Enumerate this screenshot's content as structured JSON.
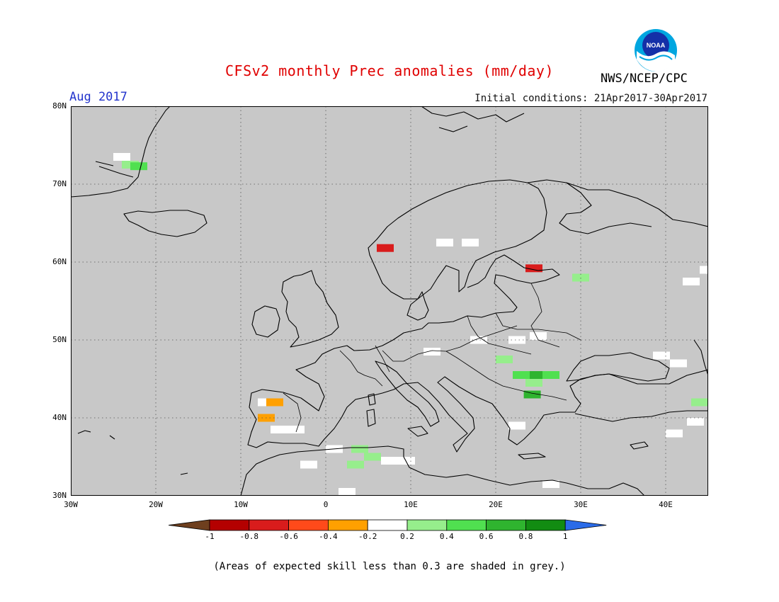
{
  "title": "CFSv2 monthly Prec anomalies (mm/day)",
  "month": "Aug 2017",
  "initial_conditions": "Initial conditions: 21Apr2017-30Apr2017",
  "agency": "NWS/NCEP/CPC",
  "logo_text": "NOAA",
  "footer": "(Areas of expected skill less than 0.3 are shaded in grey.)",
  "map": {
    "lon_range": [
      -30,
      45
    ],
    "lat_range": [
      30,
      80
    ],
    "background_color": "#c8c8c8",
    "grid": "dotted",
    "lon_ticks": [
      {
        "v": -30,
        "label": "30W"
      },
      {
        "v": -20,
        "label": "20W"
      },
      {
        "v": -10,
        "label": "10W"
      },
      {
        "v": 0,
        "label": "0"
      },
      {
        "v": 10,
        "label": "10E"
      },
      {
        "v": 20,
        "label": "20E"
      },
      {
        "v": 30,
        "label": "30E"
      },
      {
        "v": 40,
        "label": "40E"
      }
    ],
    "lat_ticks": [
      {
        "v": 30,
        "label": "30N"
      },
      {
        "v": 40,
        "label": "40N"
      },
      {
        "v": 50,
        "label": "50N"
      },
      {
        "v": 60,
        "label": "60N"
      },
      {
        "v": 70,
        "label": "70N"
      },
      {
        "v": 80,
        "label": "80N"
      }
    ],
    "anomaly_cells": [
      {
        "lon": -23.5,
        "lat": 72.5,
        "value": 0.3
      },
      {
        "lon": -22.5,
        "lat": 72.3,
        "value": 0.5
      },
      {
        "lon": -24.5,
        "lat": 73.5,
        "value": 0.0
      },
      {
        "lon": 13.5,
        "lat": 62.5,
        "value": 0.0
      },
      {
        "lon": 16.5,
        "lat": 62.5,
        "value": 0.0
      },
      {
        "lon": 6.5,
        "lat": 61.8,
        "value": -0.7
      },
      {
        "lon": 24.0,
        "lat": 59.2,
        "value": -0.7
      },
      {
        "lon": 29.5,
        "lat": 58.0,
        "value": 0.3
      },
      {
        "lon": 17.5,
        "lat": 50.0,
        "value": 0.0
      },
      {
        "lon": 22.0,
        "lat": 50.0,
        "value": 0.0
      },
      {
        "lon": 24.5,
        "lat": 50.5,
        "value": 0.0
      },
      {
        "lon": 12.0,
        "lat": 48.5,
        "value": 0.0
      },
      {
        "lon": 20.5,
        "lat": 47.5,
        "value": 0.3
      },
      {
        "lon": 22.5,
        "lat": 45.5,
        "value": 0.5
      },
      {
        "lon": 24.5,
        "lat": 45.5,
        "value": 0.7
      },
      {
        "lon": 26.0,
        "lat": 45.5,
        "value": 0.5
      },
      {
        "lon": 24.0,
        "lat": 44.5,
        "value": 0.3
      },
      {
        "lon": 23.8,
        "lat": 43.0,
        "value": 0.7
      },
      {
        "lon": -7.5,
        "lat": 42.0,
        "value": 0.0
      },
      {
        "lon": -6.5,
        "lat": 42.0,
        "value": -0.3
      },
      {
        "lon": -7.5,
        "lat": 40.0,
        "value": -0.3
      },
      {
        "lon": -6.0,
        "lat": 38.5,
        "value": 0.0
      },
      {
        "lon": -4.0,
        "lat": 38.5,
        "value": 0.0
      },
      {
        "lon": 0.5,
        "lat": 36.0,
        "value": 0.0
      },
      {
        "lon": 3.5,
        "lat": 36.0,
        "value": 0.3
      },
      {
        "lon": 5.0,
        "lat": 35.0,
        "value": 0.3
      },
      {
        "lon": 3.0,
        "lat": 34.0,
        "value": 0.3
      },
      {
        "lon": 7.0,
        "lat": 34.5,
        "value": 0.0
      },
      {
        "lon": 9.0,
        "lat": 34.5,
        "value": 0.0
      },
      {
        "lon": -2.5,
        "lat": 34.0,
        "value": 0.0
      },
      {
        "lon": 2.0,
        "lat": 30.5,
        "value": 0.0
      },
      {
        "lon": 22.0,
        "lat": 39.0,
        "value": 0.0
      },
      {
        "lon": 26.0,
        "lat": 31.5,
        "value": 0.0
      },
      {
        "lon": 39.0,
        "lat": 48.0,
        "value": 0.0
      },
      {
        "lon": 41.0,
        "lat": 47.0,
        "value": 0.0
      },
      {
        "lon": 43.5,
        "lat": 42.0,
        "value": 0.3
      },
      {
        "lon": 43.0,
        "lat": 39.5,
        "value": 0.0
      },
      {
        "lon": 40.5,
        "lat": 38.0,
        "value": 0.0
      },
      {
        "lon": 42.5,
        "lat": 57.5,
        "value": 0.0
      },
      {
        "lon": 44.5,
        "lat": 59.0,
        "value": 0.0
      }
    ]
  },
  "colorbar": {
    "bins": [
      {
        "color": "#6e3f1e"
      },
      {
        "color": "#b40000"
      },
      {
        "color": "#d91c1c"
      },
      {
        "color": "#ff4a1a"
      },
      {
        "color": "#ffa000"
      },
      {
        "color": "#ffffff"
      },
      {
        "color": "#96ee8c"
      },
      {
        "color": "#50e050"
      },
      {
        "color": "#2fb42f"
      },
      {
        "color": "#128c12"
      },
      {
        "color": "#2a6be8"
      }
    ],
    "labels": [
      "-1",
      "-0.8",
      "-0.6",
      "-0.4",
      "-0.2",
      "0.2",
      "0.4",
      "0.6",
      "0.8",
      "1"
    ]
  }
}
